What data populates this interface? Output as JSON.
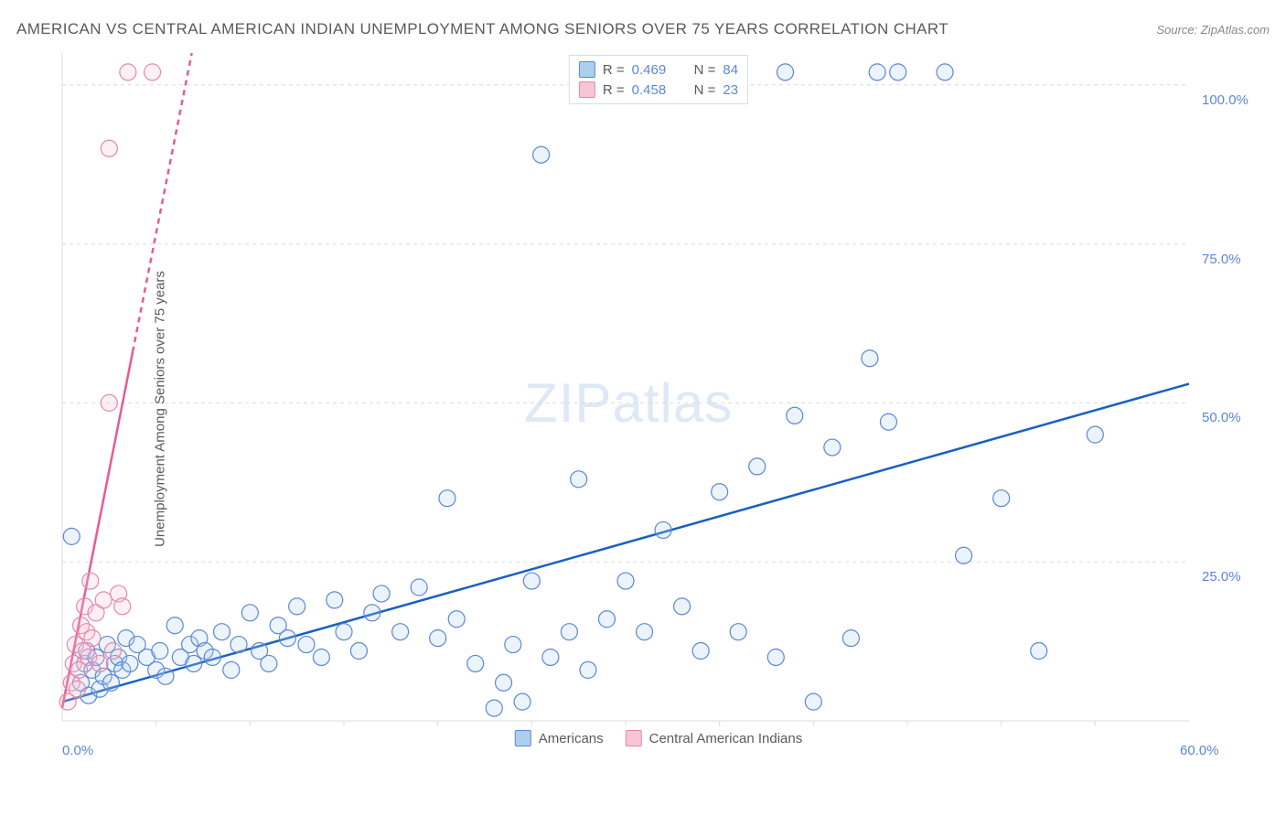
{
  "header": {
    "title": "AMERICAN VS CENTRAL AMERICAN INDIAN UNEMPLOYMENT AMONG SENIORS OVER 75 YEARS CORRELATION CHART",
    "source_label": "Source: ZipAtlas.com"
  },
  "chart": {
    "type": "scatter",
    "ylabel": "Unemployment Among Seniors over 75 years",
    "background_color": "#ffffff",
    "grid_color": "#dcdcdc",
    "axis_color": "#dcdcdc",
    "text_color": "#5a5a5a",
    "tick_label_color": "#5b87d6",
    "xlim": [
      0,
      60
    ],
    "ylim": [
      0,
      105
    ],
    "xticks": [
      0,
      60
    ],
    "xtick_labels": [
      "0.0%",
      "60.0%"
    ],
    "yticks": [
      25,
      50,
      75,
      100
    ],
    "ytick_labels": [
      "25.0%",
      "50.0%",
      "75.0%",
      "100.0%"
    ],
    "marker_radius": 9,
    "marker_stroke_width": 1.2,
    "marker_fill_opacity": 0.25,
    "series": [
      {
        "name": "Americans",
        "fill": "#aeceee",
        "stroke": "#5b87d6",
        "R_label": "R =",
        "R_value": "0.469",
        "N_label": "N =",
        "N_value": "84",
        "trend": {
          "x1": 0,
          "y1": 3,
          "x2": 60,
          "y2": 53,
          "color": "#1860c4",
          "width": 2.5,
          "dash_extend": false
        },
        "points": [
          [
            0.5,
            29
          ],
          [
            1,
            6
          ],
          [
            1.2,
            9
          ],
          [
            1.3,
            11
          ],
          [
            1.4,
            4
          ],
          [
            1.6,
            8
          ],
          [
            1.8,
            10
          ],
          [
            2,
            5
          ],
          [
            2.2,
            7
          ],
          [
            2.4,
            12
          ],
          [
            2.6,
            6
          ],
          [
            2.8,
            9
          ],
          [
            3,
            10
          ],
          [
            3.2,
            8
          ],
          [
            3.4,
            13
          ],
          [
            3.6,
            9
          ],
          [
            4,
            12
          ],
          [
            4.5,
            10
          ],
          [
            5,
            8
          ],
          [
            5.2,
            11
          ],
          [
            5.5,
            7
          ],
          [
            6,
            15
          ],
          [
            6.3,
            10
          ],
          [
            6.8,
            12
          ],
          [
            7,
            9
          ],
          [
            7.3,
            13
          ],
          [
            7.6,
            11
          ],
          [
            8,
            10
          ],
          [
            8.5,
            14
          ],
          [
            9,
            8
          ],
          [
            9.4,
            12
          ],
          [
            10,
            17
          ],
          [
            10.5,
            11
          ],
          [
            11,
            9
          ],
          [
            11.5,
            15
          ],
          [
            12,
            13
          ],
          [
            12.5,
            18
          ],
          [
            13,
            12
          ],
          [
            13.8,
            10
          ],
          [
            14.5,
            19
          ],
          [
            15,
            14
          ],
          [
            15.8,
            11
          ],
          [
            16.5,
            17
          ],
          [
            17,
            20
          ],
          [
            18,
            14
          ],
          [
            19,
            21
          ],
          [
            20,
            13
          ],
          [
            20.5,
            35
          ],
          [
            21,
            16
          ],
          [
            22,
            9
          ],
          [
            23,
            2
          ],
          [
            23.5,
            6
          ],
          [
            24,
            12
          ],
          [
            24.5,
            3
          ],
          [
            25,
            22
          ],
          [
            25.5,
            89
          ],
          [
            26,
            10
          ],
          [
            27,
            14
          ],
          [
            27.5,
            38
          ],
          [
            28,
            8
          ],
          [
            29,
            16
          ],
          [
            30,
            22
          ],
          [
            31,
            14
          ],
          [
            32,
            30
          ],
          [
            33,
            18
          ],
          [
            34,
            11
          ],
          [
            35,
            36
          ],
          [
            36,
            14
          ],
          [
            37,
            40
          ],
          [
            38,
            10
          ],
          [
            38.5,
            102
          ],
          [
            39,
            48
          ],
          [
            40,
            3
          ],
          [
            41,
            43
          ],
          [
            42,
            13
          ],
          [
            43,
            57
          ],
          [
            43.4,
            102
          ],
          [
            44,
            47
          ],
          [
            44.5,
            102
          ],
          [
            47,
            102
          ],
          [
            48,
            26
          ],
          [
            50,
            35
          ],
          [
            52,
            11
          ],
          [
            55,
            45
          ]
        ]
      },
      {
        "name": "Central American Indians",
        "fill": "#f7c5d5",
        "stroke": "#e887aa",
        "R_label": "R =",
        "R_value": "0.458",
        "N_label": "N =",
        "N_value": "23",
        "trend": {
          "x1": 0,
          "y1": 2,
          "x2": 6.9,
          "y2": 105,
          "color": "#e65b94",
          "width": 2.5,
          "solid_to_y": 58,
          "dash_extend": true
        },
        "points": [
          [
            0.3,
            3
          ],
          [
            0.5,
            6
          ],
          [
            0.6,
            9
          ],
          [
            0.7,
            12
          ],
          [
            0.8,
            5
          ],
          [
            0.9,
            8
          ],
          [
            1.0,
            15
          ],
          [
            1.1,
            11
          ],
          [
            1.2,
            18
          ],
          [
            1.3,
            14
          ],
          [
            1.4,
            10
          ],
          [
            1.5,
            22
          ],
          [
            1.6,
            13
          ],
          [
            1.8,
            17
          ],
          [
            2.0,
            9
          ],
          [
            2.2,
            19
          ],
          [
            2.5,
            50
          ],
          [
            2.5,
            90
          ],
          [
            2.7,
            11
          ],
          [
            3.0,
            20
          ],
          [
            3.2,
            18
          ],
          [
            3.5,
            102
          ],
          [
            4.8,
            102
          ]
        ]
      }
    ],
    "legend_bottom": [
      {
        "label": "Americans",
        "fill": "#aeceee",
        "stroke": "#5b87d6"
      },
      {
        "label": "Central American Indians",
        "fill": "#f7c5d5",
        "stroke": "#e887aa"
      }
    ],
    "watermark": {
      "zip": "ZIP",
      "atlas": "atlas"
    }
  }
}
